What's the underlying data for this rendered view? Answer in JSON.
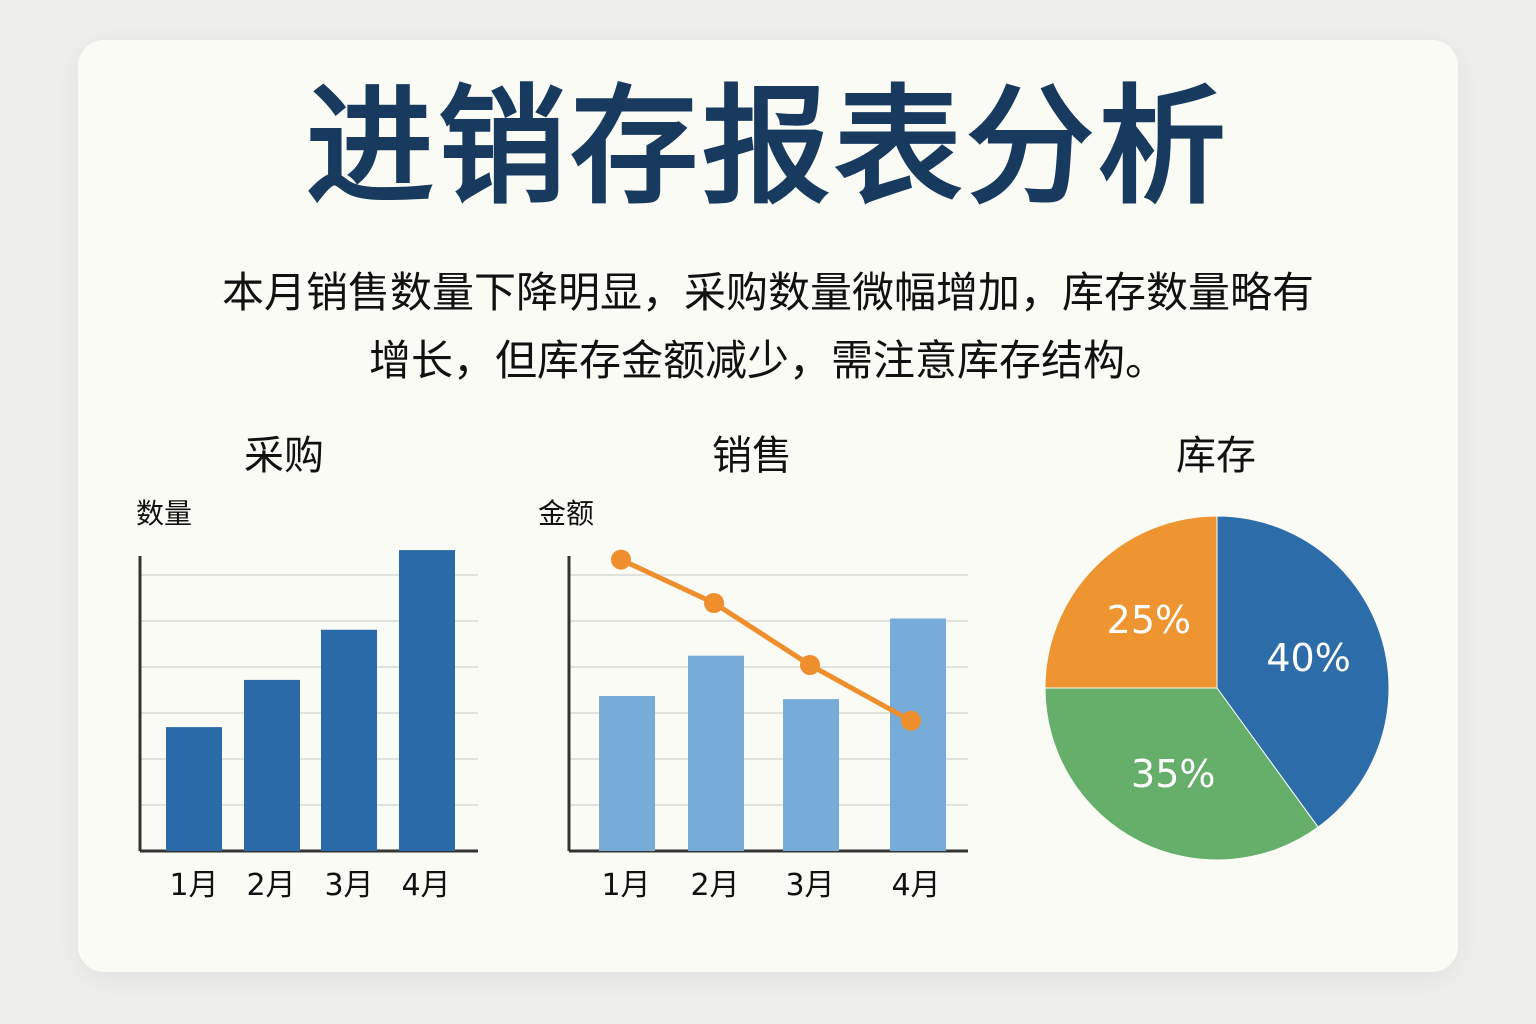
{
  "title": "进销存报表分析",
  "summary": {
    "line1": "本月销售数量下降明显，采购数量微幅增加，库存数量略有",
    "line2": "增长，但库存金额减少，需注意库存结构。"
  },
  "colors": {
    "title": "#173a5e",
    "purchase_bar": "#2b6aa8",
    "sales_bar": "#77acd9",
    "sales_line": "#ee8e2c",
    "pie_blue": "#2c6ca8",
    "pie_green": "#66af6b",
    "pie_orange": "#ee9430"
  },
  "chart_data": [
    {
      "type": "bar",
      "title": "采购",
      "ylabel": "数量",
      "categories": [
        "1月",
        "2月",
        "3月",
        "4月"
      ],
      "values": [
        42,
        58,
        75,
        102
      ],
      "ylim": [
        0,
        100
      ],
      "grid": true
    },
    {
      "type": "bar+line",
      "title": "销售",
      "ylabel": "金额",
      "categories": [
        "1月",
        "2月",
        "3月",
        "4月"
      ],
      "bar_values": [
        50,
        63,
        49,
        75
      ],
      "line_values": [
        94,
        80,
        60,
        42
      ],
      "ylim": [
        0,
        100
      ],
      "grid": true
    },
    {
      "type": "pie",
      "title": "库存",
      "slices": [
        {
          "label": "40%",
          "value": 40,
          "color": "#2c6ca8"
        },
        {
          "label": "35%",
          "value": 35,
          "color": "#66af6b"
        },
        {
          "label": "25%",
          "value": 25,
          "color": "#ee9430"
        }
      ]
    }
  ]
}
